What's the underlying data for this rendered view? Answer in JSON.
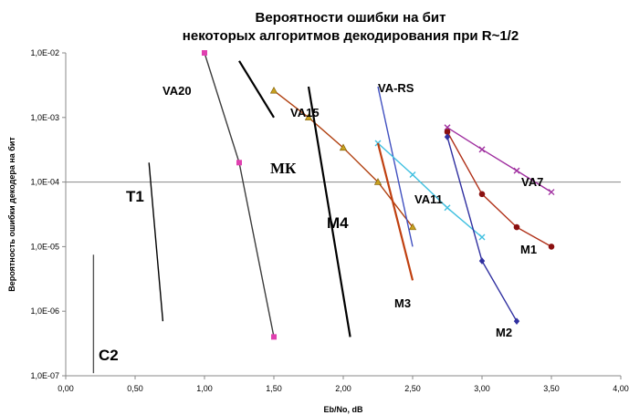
{
  "chart_data": {
    "type": "line",
    "title_line1": "Вероятности ошибки на бит",
    "title_line2": "некоторых алгоритмов декодирования при R~1/2",
    "xlabel": "Eb/No, dB",
    "ylabel": "Вероятность ошибки декодера на бит",
    "x_range": [
      0,
      4
    ],
    "y_scale": "log",
    "y_range": [
      1e-07,
      0.01
    ],
    "x_ticks": [
      "0,00",
      "0,50",
      "1,00",
      "1,50",
      "2,00",
      "2,50",
      "3,00",
      "3,50",
      "4,00"
    ],
    "y_ticks": [
      "1,0E-02",
      "1,0E-03",
      "1,0E-04",
      "1,0E-05",
      "1,0E-06",
      "1,0E-07"
    ],
    "reference_line_y": 0.0001,
    "series": [
      {
        "name": "VA20",
        "color": "#3c3c3c",
        "marker": "square",
        "marker_color": "#e040b0",
        "points": [
          [
            1.0,
            0.01
          ],
          [
            1.25,
            0.0002
          ],
          [
            1.5,
            4e-07
          ]
        ]
      },
      {
        "name": "VA15",
        "color": "#b04010",
        "marker": "triangle",
        "marker_color": "#c8a020",
        "points": [
          [
            1.5,
            0.0026
          ],
          [
            1.75,
            0.001
          ],
          [
            2.0,
            0.00034
          ],
          [
            2.25,
            0.0001
          ],
          [
            2.5,
            2e-05
          ]
        ]
      },
      {
        "name": "VA-RS",
        "color": "#4050c0",
        "marker": "none",
        "points": [
          [
            2.25,
            0.003
          ],
          [
            2.5,
            1e-05
          ]
        ]
      },
      {
        "name": "VA11",
        "color": "#40c0e0",
        "marker": "x",
        "marker_color": "#40c0e0",
        "points": [
          [
            2.25,
            0.0004
          ],
          [
            2.5,
            0.00013
          ],
          [
            2.75,
            4e-05
          ],
          [
            3.0,
            1.4e-05
          ]
        ]
      },
      {
        "name": "VA7",
        "color": "#a030a0",
        "marker": "x",
        "marker_color": "#a030a0",
        "points": [
          [
            2.75,
            0.0007
          ],
          [
            3.0,
            0.00032
          ],
          [
            3.25,
            0.00015
          ],
          [
            3.5,
            7e-05
          ]
        ]
      },
      {
        "name": "M1",
        "color": "#b03018",
        "marker": "circle",
        "marker_color": "#8b1010",
        "points": [
          [
            2.75,
            0.0006
          ],
          [
            3.0,
            6.5e-05
          ],
          [
            3.25,
            2e-05
          ],
          [
            3.5,
            1e-05
          ]
        ]
      },
      {
        "name": "M2",
        "color": "#3030a0",
        "marker": "diamond",
        "marker_color": "#3030a0",
        "points": [
          [
            2.75,
            0.0005
          ],
          [
            3.0,
            6e-06
          ],
          [
            3.25,
            7e-07
          ]
        ]
      },
      {
        "name": "M3",
        "color": "#c04010",
        "marker": "none",
        "points": [
          [
            2.25,
            0.0004
          ],
          [
            2.5,
            3e-06
          ]
        ]
      },
      {
        "name": "M4",
        "color": "#000000",
        "marker": "none",
        "points": [
          [
            1.75,
            0.003
          ],
          [
            2.05,
            4e-07
          ]
        ]
      },
      {
        "name": "МК",
        "color": "#000000",
        "marker": "none",
        "points": [
          [
            1.25,
            0.0075
          ],
          [
            1.5,
            0.001
          ]
        ]
      },
      {
        "name": "T1",
        "color": "#000000",
        "marker": "none",
        "points": [
          [
            0.6,
            0.0002
          ],
          [
            0.7,
            7e-07
          ]
        ]
      },
      {
        "name": "C2",
        "color": "#555555",
        "marker": "none",
        "points": [
          [
            0.2,
            7.5e-06
          ],
          [
            0.2,
            1.1e-07
          ]
        ]
      }
    ]
  }
}
